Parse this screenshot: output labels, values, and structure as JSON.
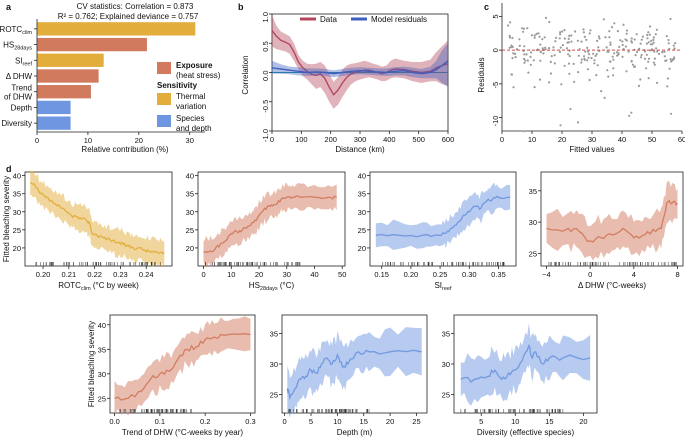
{
  "colors": {
    "exposure": "#d17a5e",
    "thermal": "#e2ad3a",
    "species": "#6f96e0",
    "data_line": "#b4475e",
    "model_line": "#3f5fbf",
    "zero_line": "#1a8fa0",
    "dashed": "#d44a4a",
    "scatter": "#9a9a9a"
  },
  "panel_labels": {
    "a": "a",
    "b": "b",
    "c": "c",
    "d": "d"
  },
  "legend_a": {
    "exposure_title": "Exposure",
    "exposure_sub": "(heat stress)",
    "sensitivity_title": "Sensitivity",
    "thermal": "Thermal",
    "thermal2": "variation",
    "species": "Species",
    "species2": "and depth"
  },
  "legend_b": {
    "data": "Data",
    "model": "Model residuals"
  },
  "chart_data": [
    {
      "id": "a",
      "type": "bar",
      "orientation": "horizontal",
      "title": "CV statistics: Correlation = 0.873",
      "subtitle": "R² = 0.762; Explained deviance = 0.757",
      "xlabel": "Relative contribution (%)",
      "xlim": [
        0,
        33
      ],
      "xticks": [
        "0",
        "10",
        "20",
        "30"
      ],
      "categories": [
        {
          "main": "ROTC",
          "sub": "clim"
        },
        {
          "main": "HS",
          "sub": "28days"
        },
        {
          "main": "SI",
          "sub": "reef"
        },
        {
          "main": "Δ DHW",
          "sub": ""
        },
        {
          "main": "Trend of DHW",
          "line1": "Trend",
          "line2": "of DHW",
          "sub": ""
        },
        {
          "main": "Depth",
          "sub": ""
        },
        {
          "main": "Diversity",
          "sub": ""
        }
      ],
      "values": [
        31,
        21.5,
        13,
        12,
        10.5,
        6.5,
        6.5
      ],
      "groups": [
        "thermal",
        "exposure",
        "thermal",
        "exposure",
        "exposure",
        "species",
        "species"
      ]
    },
    {
      "id": "b",
      "type": "line",
      "xlabel": "Distance (km)",
      "ylabel": "Correlation",
      "xlim": [
        0,
        600
      ],
      "ylim": [
        -1.0,
        1.0
      ],
      "xticks": [
        "0",
        "100",
        "200",
        "300",
        "400",
        "500",
        "600"
      ],
      "yticks": [
        "-1.0",
        "-0.5",
        "0.0",
        "0.5",
        "1.0"
      ],
      "series": [
        {
          "name": "Data",
          "x": [
            0,
            15,
            30,
            45,
            60,
            75,
            90,
            105,
            120,
            135,
            150,
            165,
            180,
            195,
            210,
            225,
            240,
            255,
            270,
            285,
            300,
            315,
            330,
            345,
            360,
            375,
            390,
            405,
            420,
            450,
            480,
            510,
            540,
            560,
            580,
            600
          ],
          "y": [
            0.72,
            0.62,
            0.55,
            0.52,
            0.48,
            0.35,
            0.18,
            0.08,
            0.02,
            -0.03,
            -0.05,
            -0.02,
            -0.1,
            -0.25,
            -0.38,
            -0.3,
            -0.18,
            -0.08,
            -0.02,
            0.0,
            0.02,
            0.04,
            0.04,
            0.02,
            0.0,
            -0.02,
            0.0,
            0.04,
            0.06,
            0.05,
            0.02,
            0.0,
            0.02,
            0.08,
            0.12,
            0.15
          ],
          "lower": [
            0.45,
            0.4,
            0.38,
            0.36,
            0.32,
            0.2,
            0.06,
            -0.06,
            -0.12,
            -0.2,
            -0.28,
            -0.25,
            -0.35,
            -0.5,
            -0.62,
            -0.55,
            -0.42,
            -0.3,
            -0.2,
            -0.15,
            -0.12,
            -0.1,
            -0.08,
            -0.1,
            -0.12,
            -0.15,
            -0.14,
            -0.1,
            -0.08,
            -0.1,
            -0.15,
            -0.18,
            -0.15,
            -0.15,
            -0.2,
            -0.22
          ],
          "upper": [
            0.98,
            0.8,
            0.7,
            0.66,
            0.62,
            0.5,
            0.3,
            0.2,
            0.15,
            0.14,
            0.15,
            0.18,
            0.12,
            -0.02,
            -0.16,
            -0.08,
            0.05,
            0.12,
            0.15,
            0.16,
            0.18,
            0.2,
            0.18,
            0.15,
            0.13,
            0.1,
            0.12,
            0.2,
            0.24,
            0.2,
            0.18,
            0.18,
            0.22,
            0.35,
            0.45,
            0.55
          ]
        },
        {
          "name": "Model residuals",
          "x": [
            0,
            30,
            60,
            90,
            120,
            150,
            180,
            210,
            240,
            270,
            300,
            330,
            360,
            390,
            420,
            450,
            480,
            510,
            540,
            560,
            580,
            600
          ],
          "y": [
            0.08,
            0.06,
            0.04,
            0.02,
            0.0,
            0.01,
            0.0,
            -0.02,
            0.0,
            0.02,
            0.03,
            0.02,
            0.01,
            0.0,
            0.02,
            0.03,
            0.0,
            -0.02,
            0.0,
            0.05,
            0.12,
            0.2
          ],
          "lower": [
            -0.02,
            -0.02,
            -0.03,
            -0.05,
            -0.06,
            -0.05,
            -0.06,
            -0.08,
            -0.06,
            -0.04,
            -0.03,
            -0.04,
            -0.05,
            -0.06,
            -0.05,
            -0.05,
            -0.08,
            -0.1,
            -0.1,
            -0.1,
            -0.18,
            -0.25
          ],
          "upper": [
            0.2,
            0.14,
            0.1,
            0.09,
            0.07,
            0.07,
            0.06,
            0.04,
            0.06,
            0.08,
            0.09,
            0.08,
            0.07,
            0.07,
            0.09,
            0.1,
            0.08,
            0.06,
            0.1,
            0.2,
            0.38,
            0.5
          ]
        }
      ]
    },
    {
      "id": "c",
      "type": "scatter",
      "xlabel": "Fitted values",
      "ylabel": "Residuals",
      "xlim": [
        0,
        60
      ],
      "ylim": [
        -12,
        7
      ],
      "xticks": [
        "0",
        "10",
        "20",
        "30",
        "40",
        "50",
        "60"
      ],
      "yticks": [
        "-10",
        "-5",
        "0",
        "5"
      ],
      "hline": 0,
      "n_points": 260,
      "seed": 11
    },
    {
      "id": "d1",
      "type": "line",
      "ylabel": "Fitted bleaching severity",
      "xlabel": {
        "main": "ROTC",
        "sub": "clim",
        "rest": " (°C by week)"
      },
      "xlim": [
        0.193,
        0.25
      ],
      "ylim": [
        15,
        41
      ],
      "xticks": [
        {
          "v": 0.2,
          "t": "0.20"
        },
        {
          "v": 0.21,
          "t": "0.21"
        },
        {
          "v": 0.22,
          "t": "0.22"
        },
        {
          "v": 0.23,
          "t": "0.23"
        },
        {
          "v": 0.24,
          "t": "0.24"
        }
      ],
      "yticks": [
        {
          "v": 20,
          "t": "20"
        },
        {
          "v": 25,
          "t": "25"
        },
        {
          "v": 30,
          "t": "30"
        },
        {
          "v": 35,
          "t": "35"
        },
        {
          "v": 40,
          "t": "40"
        }
      ],
      "group": "thermal",
      "x": [
        0.195,
        0.197,
        0.199,
        0.201,
        0.203,
        0.205,
        0.207,
        0.209,
        0.211,
        0.213,
        0.215,
        0.217,
        0.218,
        0.219,
        0.221,
        0.223,
        0.225,
        0.227,
        0.229,
        0.231,
        0.233,
        0.235,
        0.237,
        0.239,
        0.241,
        0.243,
        0.245,
        0.247
      ],
      "y": [
        38,
        37,
        35,
        34,
        33,
        32,
        31,
        30,
        29,
        28.5,
        28,
        27.5,
        27,
        24,
        23.5,
        23,
        22.5,
        22,
        21.5,
        21,
        20.5,
        20,
        20,
        19.5,
        19,
        19,
        18.5,
        18.5
      ],
      "band": 3.5,
      "rug_range": [
        0.195,
        0.247
      ]
    },
    {
      "id": "d2",
      "type": "line",
      "ylabel": "",
      "xlabel": {
        "main": "HS",
        "sub": "28days",
        "rest": " (°C)"
      },
      "xlim": [
        -2,
        51
      ],
      "ylim": [
        15,
        41
      ],
      "xticks": [
        {
          "v": 0,
          "t": "0"
        },
        {
          "v": 10,
          "t": "10"
        },
        {
          "v": 20,
          "t": "20"
        },
        {
          "v": 30,
          "t": "30"
        },
        {
          "v": 40,
          "t": "40"
        },
        {
          "v": 50,
          "t": "50"
        }
      ],
      "yticks": [
        {
          "v": 20,
          "t": "20"
        },
        {
          "v": 25,
          "t": "25"
        },
        {
          "v": 30,
          "t": "30"
        },
        {
          "v": 35,
          "t": "35"
        },
        {
          "v": 40,
          "t": "40"
        }
      ],
      "group": "exposure",
      "x": [
        0,
        2,
        4,
        6,
        8,
        10,
        12,
        14,
        16,
        18,
        20,
        22,
        24,
        26,
        28,
        30,
        32,
        35,
        40,
        45,
        48
      ],
      "y": [
        19,
        19,
        19.5,
        21,
        22,
        24,
        24.5,
        25,
        26,
        27,
        29,
        31,
        31.5,
        32,
        33.5,
        34,
        34,
        34,
        34,
        34,
        34
      ],
      "band": 3.5,
      "rug_range": [
        0,
        35
      ]
    },
    {
      "id": "d3",
      "type": "line",
      "ylabel": "",
      "xlabel": {
        "main": "SI",
        "sub": "reef",
        "rest": ""
      },
      "xlim": [
        0.13,
        0.38
      ],
      "ylim": [
        15,
        41
      ],
      "xticks": [
        {
          "v": 0.15,
          "t": "0.15"
        },
        {
          "v": 0.2,
          "t": "0.20"
        },
        {
          "v": 0.25,
          "t": "0.25"
        },
        {
          "v": 0.3,
          "t": "0.30"
        },
        {
          "v": 0.35,
          "t": "0.35"
        }
      ],
      "yticks": [
        {
          "v": 20,
          "t": "20"
        },
        {
          "v": 25,
          "t": "25"
        },
        {
          "v": 30,
          "t": "30"
        },
        {
          "v": 35,
          "t": "35"
        },
        {
          "v": 40,
          "t": "40"
        }
      ],
      "group": "species",
      "x": [
        0.14,
        0.18,
        0.22,
        0.25,
        0.26,
        0.27,
        0.28,
        0.29,
        0.3,
        0.31,
        0.32,
        0.33,
        0.34,
        0.35,
        0.37
      ],
      "y": [
        23.5,
        23.5,
        23.5,
        23.5,
        24,
        25.5,
        27,
        29,
        30,
        31.5,
        31,
        33,
        33.5,
        34,
        34
      ],
      "band": 3.5,
      "rug_range": [
        0.15,
        0.36
      ]
    },
    {
      "id": "d4",
      "type": "line",
      "ylabel": "",
      "xlabel": {
        "main": "Δ DHW (°C-weeks)",
        "sub": "",
        "rest": ""
      },
      "xlim": [
        -4.5,
        8.5
      ],
      "ylim": [
        23,
        38
      ],
      "xticks": [
        {
          "v": -4,
          "t": "−4"
        },
        {
          "v": 0,
          "t": "0"
        },
        {
          "v": 4,
          "t": "4"
        },
        {
          "v": 8,
          "t": "8"
        }
      ],
      "yticks": [
        {
          "v": 25,
          "t": "25"
        },
        {
          "v": 30,
          "t": "30"
        },
        {
          "v": 35,
          "t": "35"
        }
      ],
      "group": "exposure",
      "x": [
        -4,
        -2,
        -1,
        0,
        1,
        2,
        3,
        4,
        5,
        6,
        6.5,
        7,
        7.5,
        8
      ],
      "y": [
        29,
        29,
        28.5,
        27,
        27.5,
        28,
        29,
        27.5,
        28,
        28.5,
        29,
        33,
        33,
        33
      ],
      "band": 2.8,
      "rug_range": [
        -4,
        8
      ]
    },
    {
      "id": "d5",
      "type": "line",
      "ylabel": "Fitted bleaching severity",
      "xlabel": {
        "main": "Trend of DHW (°C-weeks by year)",
        "sub": "",
        "rest": ""
      },
      "xlim": [
        -0.01,
        0.31
      ],
      "ylim": [
        22,
        42
      ],
      "xticks": [
        {
          "v": 0.0,
          "t": "0.0"
        },
        {
          "v": 0.1,
          "t": "0.1"
        },
        {
          "v": 0.2,
          "t": "0.2"
        },
        {
          "v": 0.3,
          "t": "0.3"
        }
      ],
      "yticks": [
        {
          "v": 25,
          "t": "25"
        },
        {
          "v": 30,
          "t": "30"
        },
        {
          "v": 35,
          "t": "35"
        },
        {
          "v": 40,
          "t": "40"
        }
      ],
      "group": "exposure",
      "x": [
        0.0,
        0.03,
        0.06,
        0.08,
        0.1,
        0.12,
        0.14,
        0.16,
        0.18,
        0.2,
        0.22,
        0.25,
        0.3
      ],
      "y": [
        25,
        25,
        26.5,
        29,
        30,
        30.5,
        33,
        35,
        35.5,
        37,
        37.5,
        38,
        38
      ],
      "band": 3.0,
      "rug_range": [
        0.0,
        0.17
      ]
    },
    {
      "id": "d6",
      "type": "line",
      "ylabel": "",
      "xlabel": {
        "main": "Depth (m)",
        "sub": "",
        "rest": ""
      },
      "xlim": [
        -0.5,
        27
      ],
      "ylim": [
        22,
        38
      ],
      "xticks": [
        {
          "v": 0,
          "t": "0"
        },
        {
          "v": 5,
          "t": "5"
        },
        {
          "v": 10,
          "t": "10"
        },
        {
          "v": 15,
          "t": "15"
        },
        {
          "v": 20,
          "t": "20"
        },
        {
          "v": 25,
          "t": "25"
        }
      ],
      "yticks": [
        {
          "v": 25,
          "t": "25"
        },
        {
          "v": 30,
          "t": "30"
        },
        {
          "v": 35,
          "t": "35"
        }
      ],
      "group": "species",
      "x": [
        0.5,
        1,
        2,
        3,
        4,
        5,
        6,
        7,
        8,
        9,
        10,
        11,
        12,
        14,
        16,
        20,
        26
      ],
      "y": [
        26,
        24.5,
        26,
        27.5,
        28,
        29,
        28.5,
        30,
        31,
        30,
        31.5,
        29.5,
        30,
        32,
        32,
        32,
        32
      ],
      "band": 3.2,
      "rug_range": [
        0.5,
        16
      ]
    },
    {
      "id": "d7",
      "type": "line",
      "ylabel": "",
      "xlabel": {
        "main": "Diversity (effective species)",
        "sub": "",
        "rest": ""
      },
      "xlim": [
        1,
        22
      ],
      "ylim": [
        22,
        38
      ],
      "xticks": [
        {
          "v": 5,
          "t": "5"
        },
        {
          "v": 10,
          "t": "10"
        },
        {
          "v": 15,
          "t": "15"
        },
        {
          "v": 20,
          "t": "20"
        }
      ],
      "yticks": [
        {
          "v": 25,
          "t": "25"
        },
        {
          "v": 30,
          "t": "30"
        },
        {
          "v": 35,
          "t": "35"
        }
      ],
      "group": "species",
      "x": [
        2,
        4,
        6,
        7,
        8,
        9,
        10,
        11,
        12,
        12.5,
        13,
        14,
        15,
        17,
        21
      ],
      "y": [
        27.5,
        27.5,
        28,
        29,
        27.5,
        28.5,
        29,
        30.5,
        33,
        31,
        32,
        30,
        31,
        31,
        31
      ],
      "band": 3.2,
      "rug_range": [
        2,
        17
      ]
    }
  ]
}
